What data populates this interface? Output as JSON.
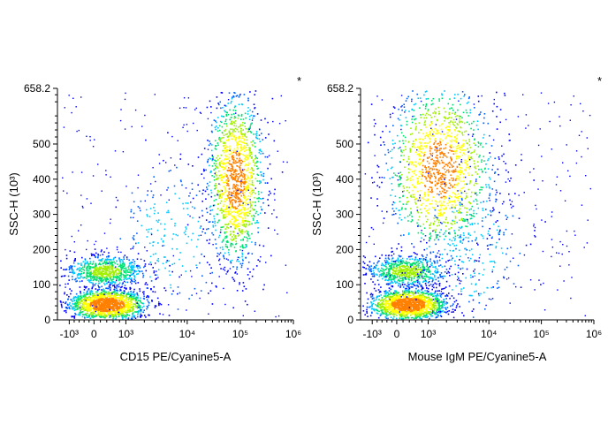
{
  "colors": {
    "background": "#ffffff",
    "axis": "#000000",
    "density_scale": [
      "#0000ff",
      "#0060ff",
      "#00c8ff",
      "#00e070",
      "#a0f000",
      "#ffff00",
      "#ff8000",
      "#ff0000"
    ]
  },
  "chart_data": [
    {
      "type": "scatter",
      "style": "density pseudocolor flow cytometry dot plot",
      "xlabel": "CD15 PE/Cyanine5-A",
      "ylabel": "SSC-H (10³)",
      "x_scale": "biexponential",
      "xlim": [
        -1000,
        1000000
      ],
      "ylim": [
        0,
        658.2
      ],
      "x_ticks": [
        {
          "value": -1000,
          "label": "-10³"
        },
        {
          "value": 0,
          "label": "0"
        },
        {
          "value": 1000,
          "label": "10³"
        },
        {
          "value": 10000,
          "label": "10⁴"
        },
        {
          "value": 100000,
          "label": "10⁵"
        },
        {
          "value": 1000000,
          "label": "10⁶"
        }
      ],
      "y_ticks": [
        {
          "value": 0,
          "label": "0"
        },
        {
          "value": 100,
          "label": "100"
        },
        {
          "value": 200,
          "label": "200"
        },
        {
          "value": 300,
          "label": "300"
        },
        {
          "value": 400,
          "label": "400"
        },
        {
          "value": 500,
          "label": "500"
        },
        {
          "value": 658.2,
          "label": "658.2"
        }
      ],
      "corner_mark": "*",
      "populations": [
        {
          "x_center": 400,
          "y_center": 45,
          "relative_density": 1.0
        },
        {
          "x_center": 350,
          "y_center": 140,
          "relative_density": 0.45
        },
        {
          "x_center": 80000,
          "y_center": 400,
          "relative_density": 0.9
        },
        {
          "x_center": 5000,
          "y_center": 230,
          "relative_density": 0.06
        }
      ]
    },
    {
      "type": "scatter",
      "style": "density pseudocolor flow cytometry dot plot",
      "xlabel": "Mouse IgM PE/Cyanine5-A",
      "ylabel": "SSC-H (10³)",
      "x_scale": "biexponential",
      "xlim": [
        -1000,
        1000000
      ],
      "ylim": [
        0,
        658.2
      ],
      "x_ticks": [
        {
          "value": -1000,
          "label": "-10³"
        },
        {
          "value": 0,
          "label": "0"
        },
        {
          "value": 1000,
          "label": "10³"
        },
        {
          "value": 10000,
          "label": "10⁴"
        },
        {
          "value": 100000,
          "label": "10⁵"
        },
        {
          "value": 1000000,
          "label": "10⁶"
        }
      ],
      "y_ticks": [
        {
          "value": 0,
          "label": "0"
        },
        {
          "value": 100,
          "label": "100"
        },
        {
          "value": 200,
          "label": "200"
        },
        {
          "value": 300,
          "label": "300"
        },
        {
          "value": 400,
          "label": "400"
        },
        {
          "value": 500,
          "label": "500"
        },
        {
          "value": 658.2,
          "label": "658.2"
        }
      ],
      "corner_mark": "*",
      "populations": [
        {
          "x_center": 350,
          "y_center": 45,
          "relative_density": 1.0
        },
        {
          "x_center": 300,
          "y_center": 140,
          "relative_density": 0.45
        },
        {
          "x_center": 1500,
          "y_center": 430,
          "relative_density": 0.9
        },
        {
          "x_center": 5000,
          "y_center": 200,
          "relative_density": 0.08
        }
      ]
    }
  ]
}
